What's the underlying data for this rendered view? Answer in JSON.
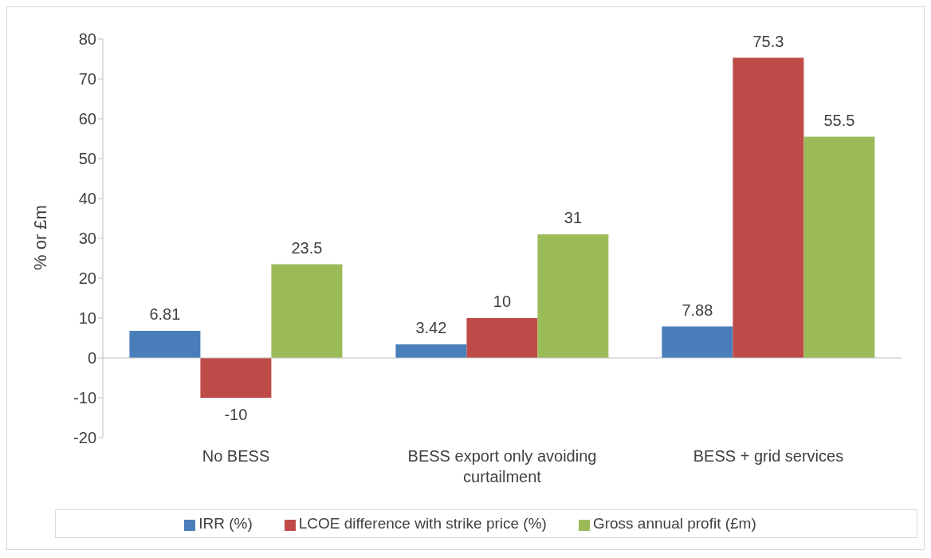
{
  "chart_data": {
    "type": "bar",
    "ylabel": "% or £m",
    "categories": [
      "No BESS",
      "BESS export only avoiding curtailment",
      "BESS + grid services"
    ],
    "series": [
      {
        "name": "IRR (%)",
        "color": "#4a7ebb",
        "values": [
          6.81,
          3.42,
          7.88
        ]
      },
      {
        "name": "LCOE difference with strike price (%)",
        "color": "#be4b48",
        "values": [
          -10,
          10,
          75.3
        ]
      },
      {
        "name": "Gross annual profit (£m)",
        "color": "#9bbb59",
        "values": [
          23.5,
          31,
          55.5
        ]
      }
    ],
    "ylim": [
      -20,
      80
    ],
    "yticks": [
      -20,
      -10,
      0,
      10,
      20,
      30,
      40,
      50,
      60,
      70,
      80
    ],
    "legend": "bottom",
    "data_labels": true
  }
}
